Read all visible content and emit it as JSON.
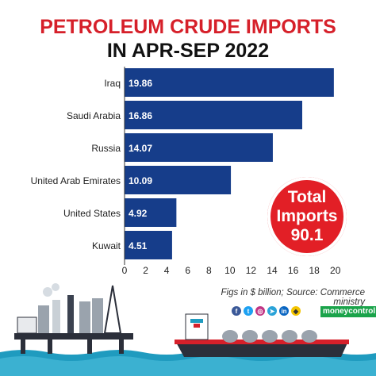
{
  "title_line1": "PETROLEUM CRUDE IMPORTS",
  "title_line2": "IN APR-SEP 2022",
  "chart_data": {
    "type": "bar",
    "orientation": "horizontal",
    "categories": [
      "Iraq",
      "Saudi Arabia",
      "Russia",
      "United Arab Emirates",
      "United States",
      "Kuwait"
    ],
    "values": [
      19.86,
      16.86,
      14.07,
      10.09,
      4.92,
      4.51
    ],
    "value_labels": [
      "19.86",
      "16.86",
      "14.07",
      "10.09",
      "4.92",
      "4.51"
    ],
    "xlim": [
      0,
      21.3
    ],
    "xticks": [
      "0",
      "2",
      "4",
      "6",
      "8",
      "10",
      "12",
      "14",
      "16",
      "18",
      "20"
    ],
    "bar_color": "#163d8a",
    "grid": false
  },
  "total_badge": {
    "line1": "Total",
    "line2": "Imports",
    "line3": "90.1"
  },
  "footnote": "Figs in $ billion; Source: Commerce ministry",
  "brand": "moneycontrol",
  "social_icons": [
    "facebook-icon",
    "twitter-icon",
    "instagram-icon",
    "telegram-icon",
    "linkedin-icon",
    "snapchat-icon"
  ],
  "colors": {
    "title_red": "#d6202a",
    "badge_red": "#e21f26",
    "bar": "#163d8a",
    "sea": "#1f9bbf"
  }
}
